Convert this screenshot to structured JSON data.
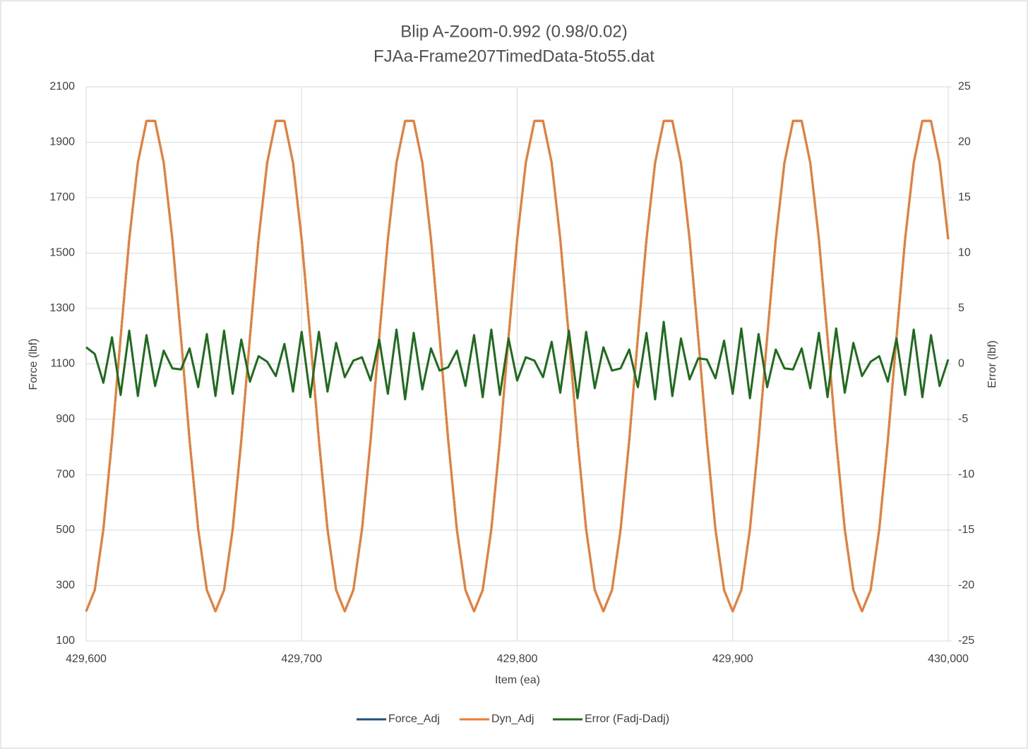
{
  "chart_data": {
    "type": "line",
    "title": "Blip A-Zoom-0.992 (0.98/0.02)",
    "subtitle": "FJAa-Frame207TimedData-5to55.dat",
    "xlabel": "Item (ea)",
    "ylabel": "Force (lbf)",
    "y2label": "Error (lbf)",
    "x": [
      429600,
      429604,
      429608,
      429612,
      429616,
      429620,
      429624,
      429628,
      429632,
      429636,
      429640,
      429644,
      429648,
      429652,
      429656,
      429660,
      429664,
      429668,
      429672,
      429676,
      429680,
      429684,
      429688,
      429692,
      429696,
      429700,
      429704,
      429708,
      429712,
      429716,
      429720,
      429724,
      429728,
      429732,
      429736,
      429740,
      429744,
      429748,
      429752,
      429756,
      429760,
      429764,
      429768,
      429772,
      429776,
      429780,
      429784,
      429788,
      429792,
      429796,
      429800,
      429804,
      429808,
      429812,
      429816,
      429820,
      429824,
      429828,
      429832,
      429836,
      429840,
      429844,
      429848,
      429852,
      429856,
      429860,
      429864,
      429868,
      429872,
      429876,
      429880,
      429884,
      429888,
      429892,
      429896,
      429900,
      429904,
      429908,
      429912,
      429916,
      429920,
      429924,
      429928,
      429932,
      429936,
      429940,
      429944,
      429948,
      429952,
      429956,
      429960,
      429964,
      429968,
      429972,
      429976,
      429980,
      429984,
      429988,
      429992,
      429996,
      430000
    ],
    "series": [
      {
        "name": "Force_Adj",
        "color": "#1f4e79",
        "values": [
          207,
          284,
          503,
          825,
          1196,
          1550,
          1826,
          1977,
          1977,
          1826,
          1550,
          1196,
          825,
          503,
          284,
          207,
          284,
          503,
          825,
          1196,
          1550,
          1826,
          1977,
          1977,
          1826,
          1550,
          1196,
          825,
          503,
          284,
          207,
          284,
          503,
          825,
          1196,
          1550,
          1826,
          1977,
          1977,
          1826,
          1550,
          1196,
          825,
          503,
          284,
          207,
          284,
          503,
          825,
          1196,
          1550,
          1826,
          1977,
          1977,
          1826,
          1550,
          1196,
          825,
          503,
          284,
          207,
          284,
          503,
          825,
          1196,
          1550,
          1826,
          1977,
          1977,
          1826,
          1550,
          1196,
          825,
          503,
          284,
          207,
          284,
          503,
          825,
          1196,
          1550,
          1826,
          1977,
          1977,
          1826,
          1550,
          1196,
          825,
          503,
          284,
          207,
          284,
          503,
          825,
          1196,
          1550,
          1826,
          1977,
          1977,
          1826,
          1550
        ]
      },
      {
        "name": "Dyn_Adj",
        "color": "#ed7d31",
        "values": [
          207,
          284,
          503,
          825,
          1196,
          1550,
          1826,
          1977,
          1977,
          1826,
          1550,
          1196,
          825,
          503,
          284,
          207,
          284,
          503,
          825,
          1196,
          1550,
          1826,
          1977,
          1977,
          1826,
          1550,
          1196,
          825,
          503,
          284,
          207,
          284,
          503,
          825,
          1196,
          1550,
          1826,
          1977,
          1977,
          1826,
          1550,
          1196,
          825,
          503,
          284,
          207,
          284,
          503,
          825,
          1196,
          1550,
          1826,
          1977,
          1977,
          1826,
          1550,
          1196,
          825,
          503,
          284,
          207,
          284,
          503,
          825,
          1196,
          1550,
          1826,
          1977,
          1977,
          1826,
          1550,
          1196,
          825,
          503,
          284,
          207,
          284,
          503,
          825,
          1196,
          1550,
          1826,
          1977,
          1977,
          1826,
          1550,
          1196,
          825,
          503,
          284,
          207,
          284,
          503,
          825,
          1196,
          1550,
          1826,
          1977,
          1977,
          1826,
          1550
        ]
      },
      {
        "name": "Error (Fadj-Dadj)",
        "color": "#1e6b1e",
        "axis": "y2",
        "values": [
          1.5,
          0.9,
          -1.7,
          2.4,
          -2.8,
          3.0,
          -2.9,
          2.6,
          -2.0,
          1.2,
          -0.4,
          -0.5,
          1.4,
          -2.1,
          2.7,
          -2.9,
          3.0,
          -2.7,
          2.2,
          -1.6,
          0.7,
          0.2,
          -1.1,
          1.8,
          -2.5,
          2.9,
          -3.0,
          2.9,
          -2.5,
          1.9,
          -1.2,
          0.3,
          0.6,
          -1.5,
          2.2,
          -2.7,
          3.1,
          -3.2,
          2.8,
          -2.3,
          1.4,
          -0.6,
          -0.3,
          1.2,
          -2.0,
          2.6,
          -3.0,
          3.1,
          -2.8,
          2.3,
          -1.5,
          0.6,
          0.3,
          -1.2,
          2.0,
          -2.6,
          3.0,
          -3.1,
          2.9,
          -2.2,
          1.5,
          -0.6,
          -0.4,
          1.3,
          -2.1,
          2.8,
          -3.2,
          3.8,
          -2.9,
          2.3,
          -1.4,
          0.5,
          0.4,
          -1.3,
          2.1,
          -2.7,
          3.2,
          -3.1,
          2.7,
          -2.1,
          1.3,
          -0.4,
          -0.5,
          1.4,
          -2.2,
          2.8,
          -3.0,
          3.2,
          -2.6,
          1.9,
          -1.1,
          0.2,
          0.7,
          -1.6,
          2.3,
          -2.8,
          3.1,
          -3.0,
          2.6,
          -2.0,
          0.4
        ]
      }
    ],
    "xlim": [
      429600,
      430000
    ],
    "xticks": [
      {
        "value": 429600,
        "label": "429,600"
      },
      {
        "value": 429700,
        "label": "429,700"
      },
      {
        "value": 429800,
        "label": "429,800"
      },
      {
        "value": 429900,
        "label": "429,900"
      },
      {
        "value": 430000,
        "label": "430,000"
      }
    ],
    "ylim": [
      100,
      2100
    ],
    "yticks": [
      100,
      300,
      500,
      700,
      900,
      1100,
      1300,
      1500,
      1700,
      1900,
      2100
    ],
    "y2lim": [
      -25,
      25
    ],
    "y2ticks": [
      -25,
      -20,
      -15,
      -10,
      -5,
      0,
      5,
      10,
      15,
      20,
      25
    ],
    "grid": true,
    "legend": "bottom"
  }
}
